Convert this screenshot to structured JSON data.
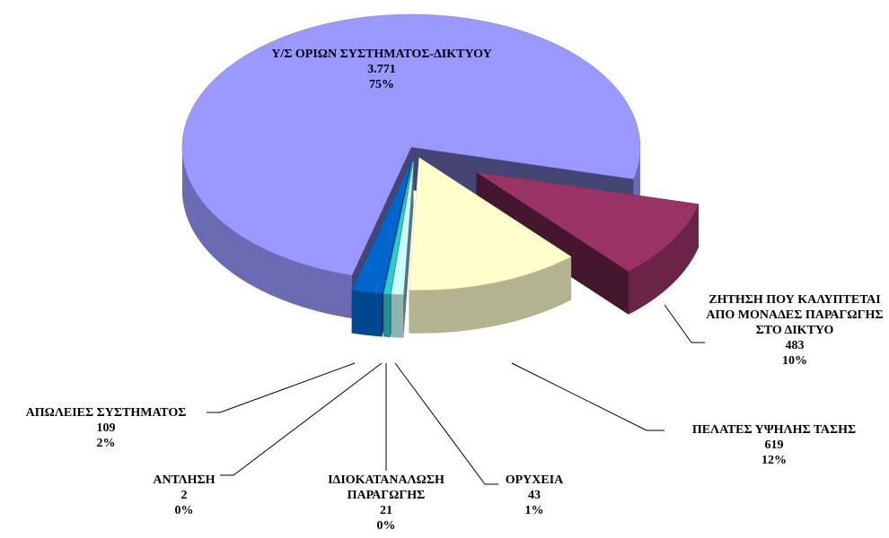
{
  "chart_data": {
    "type": "pie",
    "categories": [
      "Υ/Σ ΟΡΙΩΝ ΣΥΣΤΗΜΑΤΟΣ-ΔΙΚΤΥΟΥ",
      "ΖΗΤΗΣΗ ΠΟΥ ΚΑΛΥΠΤΕΤΑΙ ΑΠΟ ΜΟΝΑΔΕΣ ΠΑΡΑΓΩΓΗΣ ΣΤΟ ΔΙΚΤΥΟ",
      "ΠΕΛΑΤΕΣ ΥΨΗΛΗΣ ΤΑΣΗΣ",
      "ΟΡΥΧΕΙΑ",
      "ΙΔΙΟΚΑΤΑΝΑΛΩΣΗ ΠΑΡΑΓΩΓΗΣ",
      "ΑΝΤΛΗΣΗ",
      "ΑΠΩΛΕΙΕΣ ΣΥΣΤΗΜΑΤΟΣ"
    ],
    "values": [
      3771,
      483,
      619,
      43,
      21,
      2,
      109
    ],
    "value_labels": [
      "3.771",
      "483",
      "619",
      "43",
      "21",
      "2",
      "109"
    ],
    "percent_labels": [
      "75%",
      "10%",
      "12%",
      "1%",
      "0%",
      "0%",
      "2%"
    ],
    "colors": [
      "#9999ff",
      "#993366",
      "#ffffcc",
      "#ccffff",
      "#33cccc",
      "#00ffff",
      "#0066cc"
    ]
  }
}
